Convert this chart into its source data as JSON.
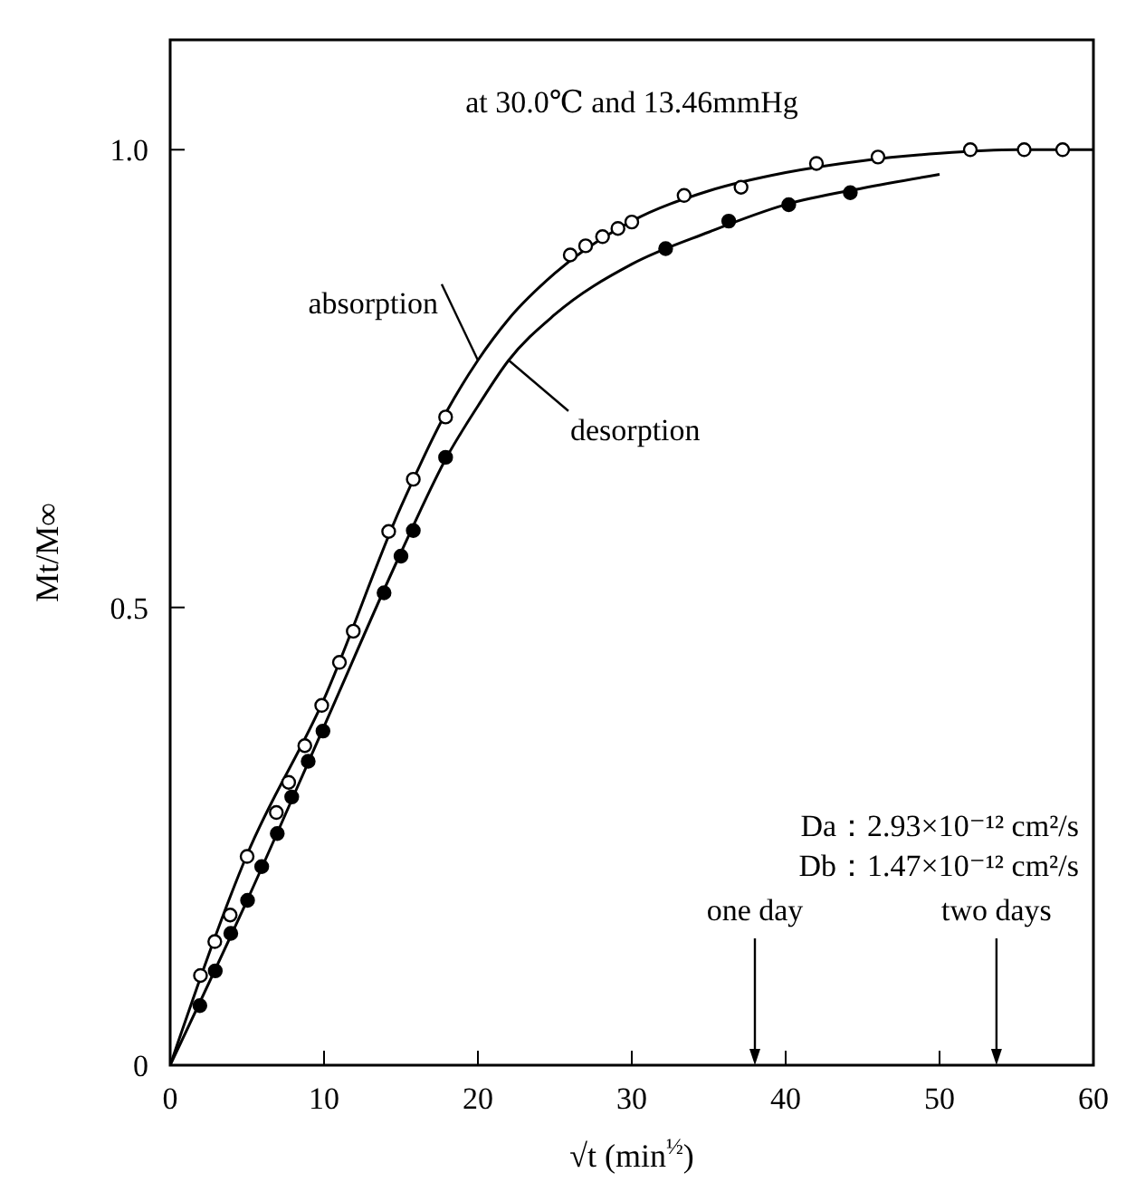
{
  "chart_data": {
    "type": "scatter",
    "title": "at 30.0℃ and 13.46mmHg",
    "xlabel": "√t (min$^{½}$)",
    "ylabel": "Mt/M∞",
    "xlim": [
      0,
      60
    ],
    "xticks": [
      0,
      10,
      20,
      30,
      40,
      50,
      60
    ],
    "ylim": [
      0,
      1.12
    ],
    "yticks": [
      0,
      0.5,
      {
        "value": 1,
        "label": "1.0"
      }
    ],
    "grid": false,
    "legend": false,
    "marker": "circle",
    "series": [
      {
        "color": "#ffffff",
        "x": [
          1.97,
          2.9,
          3.9,
          5.0,
          6.9,
          7.7,
          8.75,
          9.85,
          11.0,
          11.9,
          14.2,
          15.8,
          17.9,
          26.0,
          27.0,
          28.1,
          29.1,
          30.0,
          33.4,
          37.1,
          42,
          46,
          52,
          55.5,
          58
        ],
        "values": [
          0.098,
          0.135,
          0.164,
          0.228,
          0.276,
          0.309,
          0.349,
          0.393,
          0.44,
          0.474,
          0.583,
          0.64,
          0.708,
          0.885,
          0.895,
          0.905,
          0.914,
          0.921,
          0.95,
          0.959,
          0.985,
          0.992,
          1.0,
          1.0,
          1.0
        ]
      },
      {
        "color": "#000000",
        "x": [
          1.93,
          2.93,
          3.94,
          5.03,
          5.95,
          6.96,
          7.9,
          8.97,
          9.93,
          13.9,
          15.0,
          15.8,
          17.9,
          32.2,
          36.3,
          40.2,
          44.2
        ],
        "values": [
          0.065,
          0.103,
          0.144,
          0.18,
          0.217,
          0.253,
          0.293,
          0.332,
          0.365,
          0.516,
          0.556,
          0.584,
          0.664,
          0.892,
          0.922,
          0.94,
          0.953
        ]
      },
      {
        "name": "absorption",
        "type": "line",
        "marker": "none",
        "color": "#000000",
        "x": [
          0,
          5,
          10,
          15,
          18,
          20,
          22,
          25,
          30,
          35,
          40,
          45,
          50,
          55,
          60
        ],
        "values": [
          0,
          0.23,
          0.4,
          0.61,
          0.715,
          0.77,
          0.815,
          0.865,
          0.922,
          0.955,
          0.975,
          0.988,
          0.996,
          1.0,
          1.0
        ]
      },
      {
        "name": "desorption",
        "type": "line",
        "marker": "none",
        "color": "#000000",
        "x": [
          0,
          5,
          10,
          15,
          18,
          20,
          22,
          25,
          30,
          35,
          40,
          45,
          50
        ],
        "values": [
          0,
          0.18,
          0.37,
          0.56,
          0.665,
          0.72,
          0.77,
          0.82,
          0.875,
          0.91,
          0.94,
          0.958,
          0.973
        ]
      }
    ],
    "ref_lines": [
      {
        "axis": "x",
        "value": 38,
        "label": "one day"
      },
      {
        "axis": "x",
        "value": 53.7,
        "label": "two days"
      }
    ],
    "annotations": [
      "Da：2.93×10⁻¹² cm²/s",
      "Db：1.47×10⁻¹² cm²/s"
    ]
  }
}
